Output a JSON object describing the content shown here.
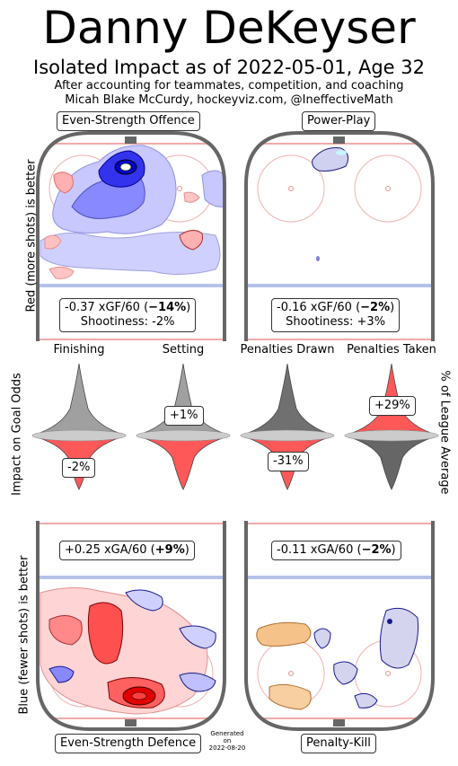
{
  "header": {
    "title": "Danny DeKeyser",
    "subtitle": "Isolated Impact as of 2022-05-01, Age 32",
    "note_line1": "After accounting for teammates, competition, and coaching",
    "note_line2": "Micah Blake McCurdy, hockeyviz.com, @IneffectiveMath"
  },
  "panels": {
    "es_offence": {
      "title": "Even-Strength Offence",
      "stat_main": "-0.37 xGF/60 (",
      "stat_bold": "−14%",
      "stat_end": ")",
      "shootiness": "Shootiness: -2%"
    },
    "power_play": {
      "title": "Power-Play",
      "stat_main": "-0.16 xGF/60 (",
      "stat_bold": "−2%",
      "stat_end": ")",
      "shootiness": "Shootiness: +3%"
    },
    "es_defence": {
      "title": "Even-Strength Defence",
      "stat_main": "+0.25 xGA/60 (",
      "stat_bold": "+9%",
      "stat_end": ")"
    },
    "penalty_kill": {
      "title": "Penalty-Kill",
      "stat_main": "-0.11 xGA/60 (",
      "stat_bold": "−2%",
      "stat_end": ")"
    }
  },
  "side_labels": {
    "top_left": "Red (more shots) is better",
    "bottom_left": "Blue (fewer shots) is better",
    "middle_left": "Impact on Goal Odds",
    "middle_right": "% of League Average"
  },
  "footer": {
    "generated_line1": "Generated",
    "generated_line2": "on",
    "generated_line3": "2022-08-20"
  },
  "chart_data": {
    "type": "violin",
    "categories": [
      "Finishing",
      "Setting",
      "Penalties Drawn",
      "Penalties Taken"
    ],
    "values": [
      -2,
      1,
      -31,
      29
    ],
    "value_labels": [
      "-2%",
      "+1%",
      "-31%",
      "+29%"
    ],
    "colors": {
      "positive_impact": "#ff2020",
      "negative_impact": "#333333",
      "neutral": "#cccccc",
      "blue_better": "#2020ff",
      "orange_pk": "#f5c28a"
    }
  }
}
